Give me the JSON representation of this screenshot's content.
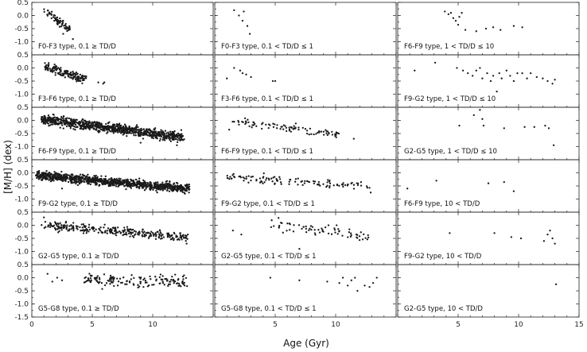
{
  "chart_data": {
    "type": "scatter",
    "xlabel": "Age (Gyr)",
    "ylabel": "[M/H] (dex)",
    "xlim": [
      0,
      15
    ],
    "ylim": [
      -1.5,
      0.5
    ],
    "x_ticks": [
      "0",
      "5",
      "10",
      "15"
    ],
    "y_ticks": [
      "0.5",
      "0.0",
      "-0.5",
      "-1.0",
      "-1.5"
    ],
    "grid": false,
    "layout": "3 columns x 6 rows of panels sharing x axis",
    "panels": [
      {
        "label": "F0-F3 type, 0.1 ≥ TD/D",
        "trend": {
          "x0": 1.0,
          "x1": 3.2,
          "y0": 0.2,
          "y1": -0.55
        },
        "scatter": 0.12,
        "approx_points": 70,
        "extra": [
          [
            3.4,
            -0.9
          ],
          [
            2.6,
            -0.7
          ]
        ]
      },
      {
        "label": "F0-F3 type, 0.1 < TD/D ≤ 1",
        "points": [
          [
            1.6,
            0.2
          ],
          [
            2.0,
            0.0
          ],
          [
            2.4,
            0.15
          ],
          [
            2.3,
            -0.2
          ],
          [
            2.7,
            -0.4
          ],
          [
            2.9,
            -0.7
          ]
        ]
      },
      {
        "label": "F6-F9 type, 1 < TD/D ≤ 10",
        "points": [
          [
            3.9,
            0.15
          ],
          [
            4.2,
            0.05
          ],
          [
            4.4,
            0.1
          ],
          [
            4.6,
            -0.1
          ],
          [
            4.8,
            -0.2
          ],
          [
            5.0,
            -0.35
          ],
          [
            5.3,
            0.1
          ],
          [
            5.1,
            -0.05
          ],
          [
            5.6,
            -0.55
          ],
          [
            6.5,
            -0.6
          ],
          [
            7.3,
            -0.5
          ],
          [
            7.9,
            -0.45
          ],
          [
            8.5,
            -0.55
          ],
          [
            9.6,
            -0.4
          ],
          [
            10.3,
            -0.45
          ]
        ]
      },
      {
        "label": "F3-F6 type, 0.1 ≥ TD/D",
        "trend": {
          "x0": 1.0,
          "x1": 4.5,
          "y0": 0.05,
          "y1": -0.45
        },
        "scatter": 0.15,
        "approx_points": 160,
        "extra": [
          [
            5.5,
            -0.55
          ],
          [
            6.0,
            -0.55
          ],
          [
            5.9,
            -0.6
          ]
        ]
      },
      {
        "label": "F3-F6 type, 0.1 < TD/D ≤ 1",
        "points": [
          [
            1.0,
            -0.4
          ],
          [
            1.6,
            0.0
          ],
          [
            2.1,
            -0.1
          ],
          [
            2.3,
            -0.2
          ],
          [
            2.6,
            -0.25
          ],
          [
            3.0,
            -0.35
          ],
          [
            4.8,
            -0.5
          ],
          [
            5.0,
            -0.5
          ]
        ]
      },
      {
        "label": "F9-G2 type, 1 < TD/D ≤ 10",
        "points": [
          [
            1.4,
            -0.1
          ],
          [
            3.1,
            0.2
          ],
          [
            4.9,
            0.0
          ],
          [
            5.4,
            -0.1
          ],
          [
            5.8,
            -0.2
          ],
          [
            6.2,
            -0.3
          ],
          [
            6.5,
            -0.1
          ],
          [
            6.8,
            0.0
          ],
          [
            7.0,
            -0.4
          ],
          [
            7.4,
            -0.2
          ],
          [
            7.7,
            -0.5
          ],
          [
            7.9,
            -0.3
          ],
          [
            8.2,
            -0.9
          ],
          [
            8.4,
            -0.2
          ],
          [
            8.6,
            -0.4
          ],
          [
            9.0,
            -0.1
          ],
          [
            9.3,
            -0.3
          ],
          [
            9.6,
            -0.5
          ],
          [
            9.9,
            -0.2
          ],
          [
            10.3,
            -0.2
          ],
          [
            10.7,
            -0.4
          ],
          [
            11.0,
            -0.2
          ],
          [
            11.5,
            -0.35
          ],
          [
            12.0,
            -0.4
          ],
          [
            12.4,
            -0.5
          ],
          [
            12.8,
            -0.6
          ],
          [
            13.0,
            -0.45
          ]
        ]
      },
      {
        "label": "F6-F9 type, 0.1 ≥ TD/D",
        "trend": {
          "x0": 0.8,
          "x1": 12.5,
          "y0": 0.05,
          "y1": -0.65
        },
        "scatter": 0.18,
        "approx_points": 900,
        "extra": [
          [
            11.5,
            -0.8
          ],
          [
            12.0,
            -0.95
          ],
          [
            9.0,
            -0.85
          ]
        ]
      },
      {
        "label": "F6-F9 type, 0.1 < TD/D ≤ 1",
        "trend": {
          "x0": 1.5,
          "x1": 10.5,
          "y0": 0.0,
          "y1": -0.55
        },
        "scatter": 0.14,
        "approx_points": 90,
        "extra": [
          [
            11.5,
            -0.7
          ],
          [
            1.2,
            -0.35
          ]
        ]
      },
      {
        "label": "G2-G5 type, 1 < TD/D ≤ 10",
        "points": [
          [
            5.1,
            -0.2
          ],
          [
            6.3,
            0.2
          ],
          [
            6.8,
            0.4
          ],
          [
            7.0,
            0.05
          ],
          [
            7.1,
            -0.2
          ],
          [
            8.8,
            -0.3
          ],
          [
            10.5,
            -0.25
          ],
          [
            11.3,
            -0.25
          ],
          [
            12.2,
            -0.2
          ],
          [
            12.5,
            -0.3
          ],
          [
            12.9,
            -0.95
          ]
        ]
      },
      {
        "label": "F9-G2 type, 0.1 ≥ TD/D",
        "trend": {
          "x0": 0.4,
          "x1": 13.0,
          "y0": -0.1,
          "y1": -0.6
        },
        "scatter": 0.16,
        "approx_points": 1000,
        "extra": [
          [
            13.0,
            -0.75
          ],
          [
            2.5,
            -0.6
          ]
        ]
      },
      {
        "label": "F9-G2 type, 0.1 < TD/D ≤ 1",
        "trend": {
          "x0": 0.8,
          "x1": 12.8,
          "y0": -0.15,
          "y1": -0.5
        },
        "scatter": 0.15,
        "approx_points": 110,
        "extra": [
          [
            12.9,
            -0.75
          ],
          [
            2.4,
            -0.3
          ]
        ]
      },
      {
        "label": "F6-F9 type, 10 < TD/D",
        "points": [
          [
            0.8,
            -0.6
          ],
          [
            3.2,
            -0.3
          ],
          [
            7.5,
            -0.4
          ],
          [
            8.8,
            -0.35
          ],
          [
            9.6,
            -0.7
          ]
        ]
      },
      {
        "label": "G2-G5 type, 0.1 ≥ TD/D",
        "trend": {
          "x0": 0.8,
          "x1": 13.0,
          "y0": 0.0,
          "y1": -0.45
        },
        "scatter": 0.17,
        "approx_points": 300,
        "extra": [
          [
            1.0,
            0.3
          ],
          [
            12.8,
            -0.7
          ]
        ]
      },
      {
        "label": "G2-G5 type, 0.1 < TD/D ≤ 1",
        "trend": {
          "x0": 4.5,
          "x1": 13.0,
          "y0": 0.05,
          "y1": -0.4
        },
        "scatter": 0.22,
        "approx_points": 70,
        "extra": [
          [
            1.5,
            -0.2
          ],
          [
            2.2,
            -0.35
          ],
          [
            7.0,
            -0.9
          ]
        ]
      },
      {
        "label": "F9-G2 type, 10 < TD/D",
        "points": [
          [
            4.3,
            -0.3
          ],
          [
            8.0,
            -0.3
          ],
          [
            9.4,
            -0.45
          ],
          [
            10.2,
            -0.5
          ],
          [
            12.1,
            -0.6
          ],
          [
            12.4,
            -0.35
          ],
          [
            12.6,
            -0.2
          ],
          [
            12.8,
            -0.5
          ],
          [
            13.0,
            -0.7
          ]
        ]
      },
      {
        "label": "G5-G8 type, 0.1 ≥ TD/D",
        "trend": {
          "x0": 4.3,
          "x1": 13.0,
          "y0": -0.05,
          "y1": -0.2
        },
        "scatter": 0.22,
        "approx_points": 150,
        "extra": [
          [
            1.3,
            0.15
          ],
          [
            1.7,
            -0.15
          ],
          [
            2.1,
            0.0
          ],
          [
            2.5,
            -0.1
          ]
        ]
      },
      {
        "label": "G5-G8 type, 0.1 < TD/D ≤ 1",
        "points": [
          [
            4.6,
            0.0
          ],
          [
            7.0,
            -0.1
          ],
          [
            9.3,
            -0.15
          ],
          [
            10.3,
            -0.2
          ],
          [
            10.6,
            0.0
          ],
          [
            11.0,
            -0.3
          ],
          [
            11.3,
            -0.1
          ],
          [
            11.6,
            0.0
          ],
          [
            11.8,
            -0.5
          ],
          [
            12.4,
            -0.3
          ],
          [
            12.8,
            -0.35
          ],
          [
            13.1,
            -0.2
          ],
          [
            13.4,
            0.0
          ]
        ]
      },
      {
        "label": "G2-G5 type, 10 < TD/D",
        "points": [
          [
            13.1,
            -0.25
          ]
        ]
      }
    ]
  }
}
